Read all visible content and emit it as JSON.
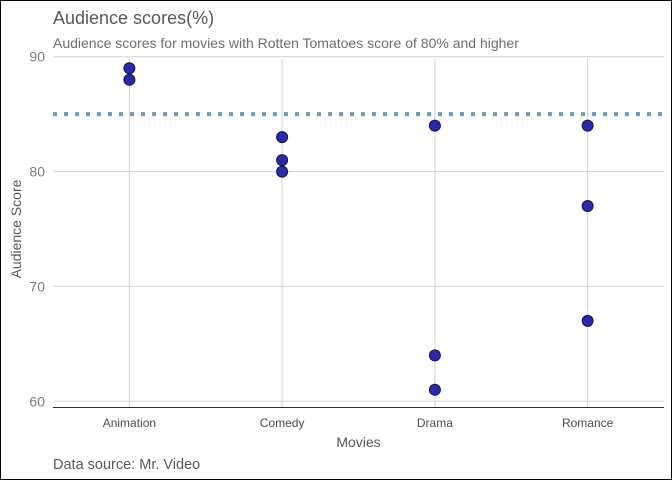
{
  "title": "Audience scores(%)",
  "subtitle": "Audience scores for movies with Rotten Tomatoes score of 80% and higher",
  "caption": "Data source: Mr. Video",
  "chart_data": {
    "type": "scatter",
    "xlabel": "Movies",
    "ylabel": "Audience Score",
    "categories": [
      "Animation",
      "Comedy",
      "Drama",
      "Romance"
    ],
    "ylim": [
      59.5,
      90.5
    ],
    "yticks": [
      60,
      70,
      80,
      90
    ],
    "grid": true,
    "reference_line": {
      "y": 85,
      "style": "dotted",
      "color": "#6b9bbd"
    },
    "point_color": "#2a2aa6",
    "point_stroke": "#14145a",
    "points": [
      {
        "category": "Animation",
        "y": 89
      },
      {
        "category": "Animation",
        "y": 88
      },
      {
        "category": "Comedy",
        "y": 83
      },
      {
        "category": "Comedy",
        "y": 81
      },
      {
        "category": "Comedy",
        "y": 80
      },
      {
        "category": "Drama",
        "y": 84
      },
      {
        "category": "Drama",
        "y": 64
      },
      {
        "category": "Drama",
        "y": 61
      },
      {
        "category": "Romance",
        "y": 84
      },
      {
        "category": "Romance",
        "y": 77
      },
      {
        "category": "Romance",
        "y": 67
      }
    ]
  }
}
